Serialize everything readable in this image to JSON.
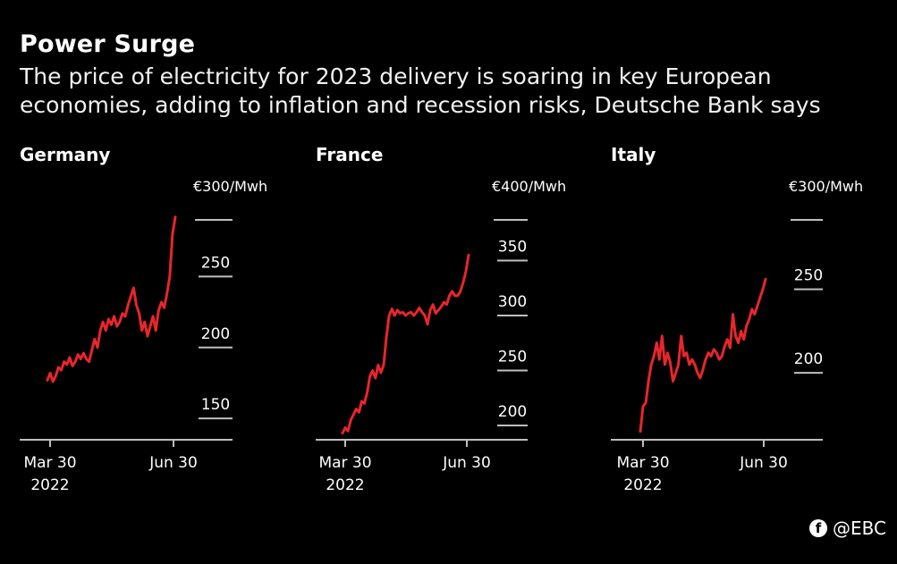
{
  "header": {
    "title": "Power Surge",
    "subtitle": "The price of electricity for 2023 delivery is soaring in key European economies, adding to inflation and recession risks, Deutsche Bank says"
  },
  "watermark": {
    "icon": "facebook-icon",
    "text": "@EBC"
  },
  "colors": {
    "background": "#000000",
    "line": "#e8262b",
    "text": "#ffffff"
  },
  "chart_data": [
    {
      "type": "line",
      "title": "Germany",
      "unit_label": "€300/Mwh",
      "ylim": [
        135,
        300
      ],
      "yticks": [
        150,
        200,
        250
      ],
      "x_ticks": [
        "Mar 30\n2022",
        "Jun 30"
      ],
      "x": [
        0,
        2,
        4,
        6,
        8,
        10,
        12,
        14,
        16,
        18,
        20,
        22,
        24,
        26,
        28,
        30,
        32,
        34,
        36,
        38,
        40,
        42,
        44,
        46,
        48,
        50,
        52,
        54,
        56,
        58,
        60,
        62,
        64,
        66,
        68,
        70,
        72,
        74,
        76,
        78,
        80,
        82,
        84,
        86,
        88,
        90,
        92
      ],
      "series": [
        {
          "name": "",
          "values": [
            177,
            182,
            176,
            180,
            186,
            184,
            190,
            188,
            193,
            187,
            190,
            195,
            192,
            196,
            192,
            190,
            198,
            206,
            200,
            212,
            218,
            212,
            220,
            216,
            222,
            215,
            218,
            224,
            222,
            230,
            236,
            242,
            230,
            224,
            212,
            218,
            208,
            215,
            222,
            212,
            226,
            232,
            228,
            238,
            250,
            280,
            292
          ]
        }
      ]
    },
    {
      "type": "line",
      "title": "France",
      "unit_label": "€400/Mwh",
      "ylim": [
        187,
        400
      ],
      "yticks": [
        200,
        250,
        300,
        350
      ],
      "x_ticks": [
        "Mar 30\n2022",
        "Jun 30"
      ],
      "x": [
        0,
        2,
        4,
        6,
        8,
        10,
        12,
        14,
        16,
        18,
        20,
        22,
        24,
        26,
        28,
        30,
        32,
        34,
        36,
        38,
        40,
        42,
        44,
        46,
        48,
        50,
        52,
        54,
        56,
        58,
        60,
        62,
        64,
        66,
        68,
        70,
        72,
        74,
        76,
        78,
        80,
        82,
        84,
        86,
        88,
        90,
        92
      ],
      "series": [
        {
          "name": "",
          "values": [
            193,
            198,
            195,
            205,
            210,
            215,
            212,
            222,
            220,
            230,
            245,
            250,
            243,
            255,
            248,
            255,
            280,
            300,
            306,
            300,
            305,
            302,
            303,
            300,
            302,
            303,
            300,
            303,
            307,
            303,
            300,
            292,
            305,
            310,
            302,
            305,
            308,
            312,
            310,
            318,
            322,
            318,
            318,
            322,
            330,
            340,
            355
          ]
        }
      ]
    },
    {
      "type": "line",
      "title": "Italy",
      "unit_label": "€300/Mwh",
      "ylim": [
        160,
        300
      ],
      "yticks": [
        200,
        250
      ],
      "x_ticks": [
        "Mar 30\n2022",
        "Jun 30"
      ],
      "x": [
        0,
        2,
        4,
        6,
        8,
        10,
        12,
        14,
        16,
        18,
        20,
        22,
        24,
        26,
        28,
        30,
        32,
        34,
        36,
        38,
        40,
        42,
        44,
        46,
        48,
        50,
        52,
        54,
        56,
        58,
        60,
        62,
        64,
        66,
        68,
        70,
        72,
        74,
        76,
        78,
        80,
        82,
        84,
        86,
        88,
        90,
        92
      ],
      "series": [
        {
          "name": "",
          "values": [
            165,
            180,
            182,
            195,
            205,
            210,
            218,
            208,
            222,
            205,
            212,
            206,
            195,
            200,
            205,
            222,
            210,
            212,
            205,
            208,
            205,
            200,
            197,
            202,
            208,
            212,
            210,
            214,
            212,
            208,
            210,
            216,
            220,
            215,
            235,
            222,
            218,
            225,
            220,
            228,
            232,
            238,
            235,
            240,
            245,
            250,
            256
          ]
        }
      ]
    }
  ]
}
